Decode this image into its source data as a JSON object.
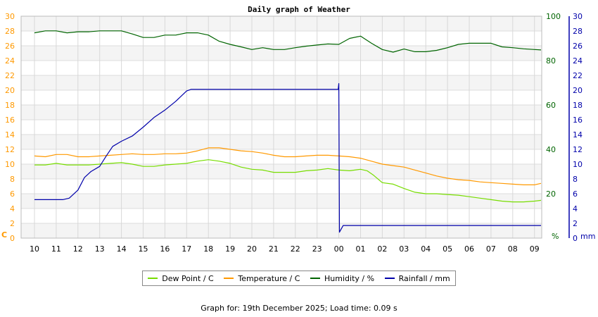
{
  "chart_data": {
    "type": "line",
    "title": "Daily graph of Weather",
    "x_ticks": [
      "10",
      "11",
      "12",
      "13",
      "14",
      "15",
      "16",
      "17",
      "18",
      "19",
      "20",
      "21",
      "22",
      "23",
      "00",
      "01",
      "02",
      "03",
      "04",
      "05",
      "06",
      "07",
      "08",
      "09"
    ],
    "y_left": {
      "label": "C",
      "range": [
        0,
        30
      ],
      "ticks": [
        "0",
        "2",
        "4",
        "6",
        "8",
        "10",
        "12",
        "14",
        "16",
        "18",
        "20",
        "22",
        "24",
        "26",
        "28",
        "30"
      ],
      "color": "#ff9900"
    },
    "y_right_humidity": {
      "label": "%",
      "range": [
        0,
        100
      ],
      "ticks": [
        "20",
        "40",
        "60",
        "80",
        "100"
      ],
      "color": "#006400"
    },
    "y_right_rain": {
      "label": "mm",
      "range": [
        0,
        30
      ],
      "ticks": [
        "0",
        "2",
        "4",
        "6",
        "8",
        "10",
        "12",
        "14",
        "16",
        "18",
        "20",
        "22",
        "24",
        "26",
        "28",
        "30"
      ],
      "color": "#0000aa"
    },
    "grid": true,
    "legend_position": "bottom",
    "series": [
      {
        "name": "Dew Point / C",
        "axis": "left",
        "color": "#77dd00",
        "points": [
          [
            0,
            9.9
          ],
          [
            0.5,
            9.9
          ],
          [
            1,
            10.1
          ],
          [
            1.5,
            9.9
          ],
          [
            2,
            9.9
          ],
          [
            2.5,
            9.9
          ],
          [
            3,
            10
          ],
          [
            3.5,
            10.1
          ],
          [
            4,
            10.2
          ],
          [
            4.5,
            10
          ],
          [
            5,
            9.7
          ],
          [
            5.5,
            9.7
          ],
          [
            6,
            9.9
          ],
          [
            6.5,
            10
          ],
          [
            7,
            10.1
          ],
          [
            7.5,
            10.4
          ],
          [
            8,
            10.6
          ],
          [
            8.5,
            10.4
          ],
          [
            9,
            10.1
          ],
          [
            9.5,
            9.6
          ],
          [
            10,
            9.3
          ],
          [
            10.5,
            9.2
          ],
          [
            11,
            8.9
          ],
          [
            11.5,
            8.9
          ],
          [
            12,
            8.9
          ],
          [
            12.5,
            9.1
          ],
          [
            13,
            9.2
          ],
          [
            13.5,
            9.4
          ],
          [
            14,
            9.2
          ],
          [
            14.5,
            9.1
          ],
          [
            15,
            9.3
          ],
          [
            15.3,
            9.1
          ],
          [
            15.6,
            8.5
          ],
          [
            16,
            7.5
          ],
          [
            16.5,
            7.3
          ],
          [
            17,
            6.7
          ],
          [
            17.5,
            6.2
          ],
          [
            18,
            6
          ],
          [
            18.5,
            6
          ],
          [
            19,
            5.9
          ],
          [
            19.5,
            5.8
          ],
          [
            20,
            5.6
          ],
          [
            20.5,
            5.4
          ],
          [
            21,
            5.2
          ],
          [
            21.5,
            5
          ],
          [
            22,
            4.9
          ],
          [
            22.5,
            4.9
          ],
          [
            23,
            5
          ],
          [
            23.3,
            5.1
          ]
        ]
      },
      {
        "name": "Temperature / C",
        "axis": "left",
        "color": "#ff9900",
        "points": [
          [
            0,
            11.1
          ],
          [
            0.5,
            11
          ],
          [
            1,
            11.3
          ],
          [
            1.5,
            11.3
          ],
          [
            2,
            11
          ],
          [
            2.5,
            11
          ],
          [
            3,
            11.1
          ],
          [
            3.5,
            11.2
          ],
          [
            4,
            11.3
          ],
          [
            4.5,
            11.4
          ],
          [
            5,
            11.3
          ],
          [
            5.5,
            11.3
          ],
          [
            6,
            11.4
          ],
          [
            6.5,
            11.4
          ],
          [
            7,
            11.5
          ],
          [
            7.5,
            11.8
          ],
          [
            8,
            12.2
          ],
          [
            8.5,
            12.2
          ],
          [
            9,
            12
          ],
          [
            9.5,
            11.8
          ],
          [
            10,
            11.7
          ],
          [
            10.5,
            11.5
          ],
          [
            11,
            11.2
          ],
          [
            11.5,
            11
          ],
          [
            12,
            11
          ],
          [
            12.5,
            11.1
          ],
          [
            13,
            11.2
          ],
          [
            13.5,
            11.2
          ],
          [
            14,
            11.1
          ],
          [
            14.5,
            11
          ],
          [
            15,
            10.8
          ],
          [
            15.5,
            10.4
          ],
          [
            16,
            10
          ],
          [
            16.5,
            9.8
          ],
          [
            17,
            9.6
          ],
          [
            17.5,
            9.2
          ],
          [
            18,
            8.8
          ],
          [
            18.5,
            8.4
          ],
          [
            19,
            8.1
          ],
          [
            19.5,
            7.9
          ],
          [
            20,
            7.8
          ],
          [
            20.5,
            7.6
          ],
          [
            21,
            7.5
          ],
          [
            21.5,
            7.4
          ],
          [
            22,
            7.3
          ],
          [
            22.5,
            7.2
          ],
          [
            23,
            7.2
          ],
          [
            23.3,
            7.4
          ]
        ]
      },
      {
        "name": "Humidity / %",
        "axis": "humidity",
        "color": "#006400",
        "points": [
          [
            0,
            92.5
          ],
          [
            0.5,
            93.4
          ],
          [
            1,
            93.4
          ],
          [
            1.5,
            92.5
          ],
          [
            2,
            93
          ],
          [
            2.5,
            93
          ],
          [
            3,
            93.4
          ],
          [
            3.5,
            93.4
          ],
          [
            4,
            93.4
          ],
          [
            4.5,
            92
          ],
          [
            5,
            90.4
          ],
          [
            5.5,
            90.4
          ],
          [
            6,
            91.5
          ],
          [
            6.5,
            91.5
          ],
          [
            7,
            92.5
          ],
          [
            7.5,
            92.5
          ],
          [
            8,
            91.5
          ],
          [
            8.5,
            88.7
          ],
          [
            9,
            87.3
          ],
          [
            9.5,
            86.2
          ],
          [
            10,
            85
          ],
          [
            10.5,
            85.8
          ],
          [
            11,
            85
          ],
          [
            11.5,
            85
          ],
          [
            12,
            85.8
          ],
          [
            12.5,
            86.5
          ],
          [
            13,
            87
          ],
          [
            13.5,
            87.5
          ],
          [
            14,
            87.3
          ],
          [
            14.5,
            90
          ],
          [
            15,
            91
          ],
          [
            15.5,
            87.8
          ],
          [
            16,
            85
          ],
          [
            16.5,
            83.8
          ],
          [
            17,
            85.2
          ],
          [
            17.5,
            84
          ],
          [
            18,
            84
          ],
          [
            18.5,
            84.6
          ],
          [
            19,
            85.8
          ],
          [
            19.5,
            87.3
          ],
          [
            20,
            87.8
          ],
          [
            20.5,
            87.8
          ],
          [
            21,
            87.8
          ],
          [
            21.5,
            86.2
          ],
          [
            22,
            85.8
          ],
          [
            22.5,
            85.3
          ],
          [
            23,
            85
          ],
          [
            23.3,
            84.8
          ]
        ]
      },
      {
        "name": "Rainfall / mm",
        "axis": "rain",
        "color": "#0000aa",
        "points": [
          [
            0,
            5.2
          ],
          [
            1,
            5.2
          ],
          [
            1.3,
            5.2
          ],
          [
            1.6,
            5.4
          ],
          [
            2,
            6.5
          ],
          [
            2.3,
            8.2
          ],
          [
            2.6,
            9
          ],
          [
            3,
            9.7
          ],
          [
            3.3,
            11.1
          ],
          [
            3.6,
            12.4
          ],
          [
            4,
            13.1
          ],
          [
            4.5,
            13.8
          ],
          [
            5,
            15
          ],
          [
            5.5,
            16.3
          ],
          [
            6,
            17.3
          ],
          [
            6.5,
            18.5
          ],
          [
            7,
            19.9
          ],
          [
            7.2,
            20.1
          ],
          [
            8,
            20.1
          ],
          [
            10,
            20.1
          ],
          [
            12,
            20.1
          ],
          [
            13,
            20.1
          ],
          [
            13.97,
            20.1
          ],
          [
            14,
            20.9
          ],
          [
            14.03,
            0.8
          ],
          [
            14.2,
            1.7
          ],
          [
            16,
            1.7
          ],
          [
            18,
            1.7
          ],
          [
            20,
            1.7
          ],
          [
            22,
            1.7
          ],
          [
            23.3,
            1.7
          ]
        ]
      }
    ]
  },
  "legend": [
    {
      "label": "Dew Point / C",
      "color": "#77dd00"
    },
    {
      "label": "Temperature / C",
      "color": "#ff9900"
    },
    {
      "label": "Humidity / %",
      "color": "#006400"
    },
    {
      "label": "Rainfall / mm",
      "color": "#0000aa"
    }
  ],
  "footer": "Graph for: 19th December 2025; Load time: 0.09 s"
}
